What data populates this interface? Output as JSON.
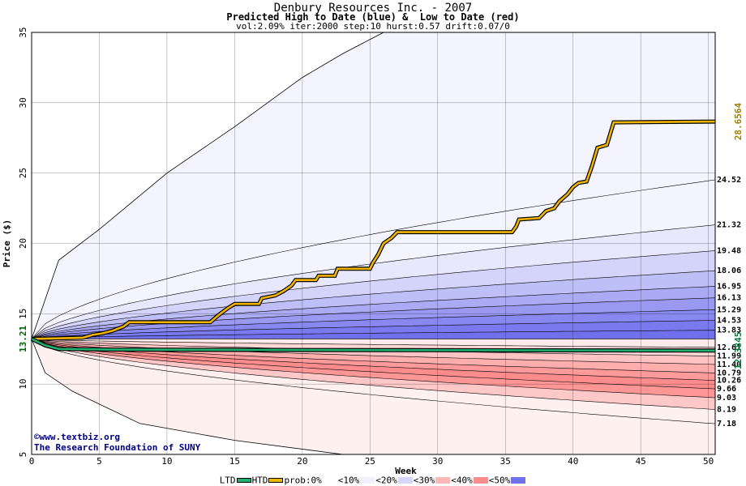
{
  "chart_data": {
    "type": "area",
    "title": "Denbury Resources Inc. - 2007",
    "subtitle": "Predicted High to Date (blue) &  Low to Date (red)",
    "params": "vol:2.09% iter:2000 step:10 hurst:0.57 drift:0.07/0",
    "xlabel": "Week",
    "ylabel": "Price ($)",
    "xlim": [
      0,
      50.5
    ],
    "ylim": [
      5,
      35
    ],
    "xticks": [
      0,
      5,
      10,
      15,
      20,
      25,
      30,
      35,
      40,
      45,
      50
    ],
    "yticks": [
      5,
      10,
      15,
      20,
      25,
      30,
      35
    ],
    "grid": true,
    "start_price": 13.21,
    "start_label": "13.21",
    "high_bands": {
      "end_values": [
        13.83,
        14.53,
        15.29,
        16.13,
        16.95,
        18.06,
        19.48,
        21.32,
        24.52
      ],
      "labels": [
        "13.83",
        "14.53",
        "15.29",
        "16.13",
        "16.95",
        "18.06",
        "19.48",
        "21.32",
        "24.52"
      ],
      "fills": [
        "#7070ec",
        "#7a7aee",
        "#8888f0",
        "#9999f2",
        "#ababf4",
        "#bfbff7",
        "#d4d4fa",
        "#e8e8fd",
        "#f4f4fe"
      ],
      "outer_envelope": [
        [
          0,
          13.21
        ],
        [
          2,
          18.8
        ],
        [
          5,
          21
        ],
        [
          10,
          25
        ],
        [
          15,
          28.3
        ],
        [
          20,
          31.8
        ],
        [
          23,
          33.5
        ],
        [
          26,
          35
        ]
      ]
    },
    "low_bands": {
      "end_values": [
        12.61,
        11.99,
        11.4,
        10.79,
        10.26,
        9.66,
        9.03,
        8.19,
        7.18
      ],
      "labels": [
        "12.61",
        "11.99",
        "11.40",
        "10.79",
        "10.26",
        "9.66",
        "9.03",
        "8.19",
        "7.18"
      ],
      "fills": [
        "#ffeaea",
        "#ffd7d7",
        "#ffc3c3",
        "#ffaeae",
        "#ff9a9a",
        "#ff8c8c",
        "#ff9696",
        "#ffc8c8",
        "#fff0f0"
      ],
      "outer_envelope": [
        [
          0,
          13.21
        ],
        [
          1,
          10.8
        ],
        [
          3,
          9.5
        ],
        [
          8,
          7.2
        ],
        [
          15,
          6
        ],
        [
          23,
          5
        ]
      ]
    },
    "series": [
      {
        "name": "HTD",
        "color": "#f0b400",
        "end_label": "28.6564",
        "points": [
          [
            0,
            13.21
          ],
          [
            3.8,
            13.3
          ],
          [
            4.5,
            13.5
          ],
          [
            5.2,
            13.6
          ],
          [
            6,
            13.8
          ],
          [
            6.8,
            14.1
          ],
          [
            7.2,
            14.4
          ],
          [
            13.2,
            14.4
          ],
          [
            13.8,
            14.9
          ],
          [
            14.5,
            15.4
          ],
          [
            15,
            15.7
          ],
          [
            16.8,
            15.7
          ],
          [
            17,
            16.1
          ],
          [
            18,
            16.3
          ],
          [
            18.6,
            16.6
          ],
          [
            19.2,
            17
          ],
          [
            19.5,
            17.4
          ],
          [
            21,
            17.4
          ],
          [
            21.2,
            17.7
          ],
          [
            22.4,
            17.7
          ],
          [
            22.6,
            18.2
          ],
          [
            25,
            18.2
          ],
          [
            25.2,
            18.6
          ],
          [
            25.6,
            19.2
          ],
          [
            25.8,
            19.6
          ],
          [
            26,
            20
          ],
          [
            26.6,
            20.4
          ],
          [
            27,
            20.8
          ],
          [
            35.5,
            20.8
          ],
          [
            35.8,
            21.2
          ],
          [
            36,
            21.7
          ],
          [
            37.5,
            21.8
          ],
          [
            38,
            22.3
          ],
          [
            38.6,
            22.5
          ],
          [
            39,
            23
          ],
          [
            39.6,
            23.5
          ],
          [
            40,
            24
          ],
          [
            40.4,
            24.3
          ],
          [
            41,
            24.4
          ],
          [
            41.4,
            25.5
          ],
          [
            41.8,
            26.8
          ],
          [
            42.5,
            27
          ],
          [
            43,
            28.6
          ],
          [
            50.5,
            28.66
          ]
        ]
      },
      {
        "name": "LTD",
        "color": "#20b070",
        "end_label": "12.3845",
        "points": [
          [
            0,
            13.21
          ],
          [
            1,
            12.75
          ],
          [
            2,
            12.5
          ],
          [
            6,
            12.45
          ],
          [
            20,
            12.42
          ],
          [
            50.5,
            12.38
          ]
        ]
      }
    ],
    "legend": [
      {
        "label": "LTD",
        "kind": "line",
        "color": "#20b070"
      },
      {
        "label": "HTD",
        "kind": "line",
        "color": "#f0b400"
      },
      {
        "label": "prob:0%",
        "kind": "swatch",
        "color": "#ffffff"
      },
      {
        "label": "<10%",
        "kind": "swatch",
        "color": "#f0f0fe"
      },
      {
        "label": "<20%",
        "kind": "swatch",
        "color": "#d6d6fa"
      },
      {
        "label": "<30%",
        "kind": "swatch",
        "color": "#ffb8b8"
      },
      {
        "label": "<40%",
        "kind": "swatch",
        "color": "#ff8c8c"
      },
      {
        "label": "<50%",
        "kind": "swatch",
        "color": "#7070ec"
      }
    ]
  },
  "credits": {
    "line1": "©www.textbiz.org",
    "line2": "The Research Foundation of SUNY"
  }
}
